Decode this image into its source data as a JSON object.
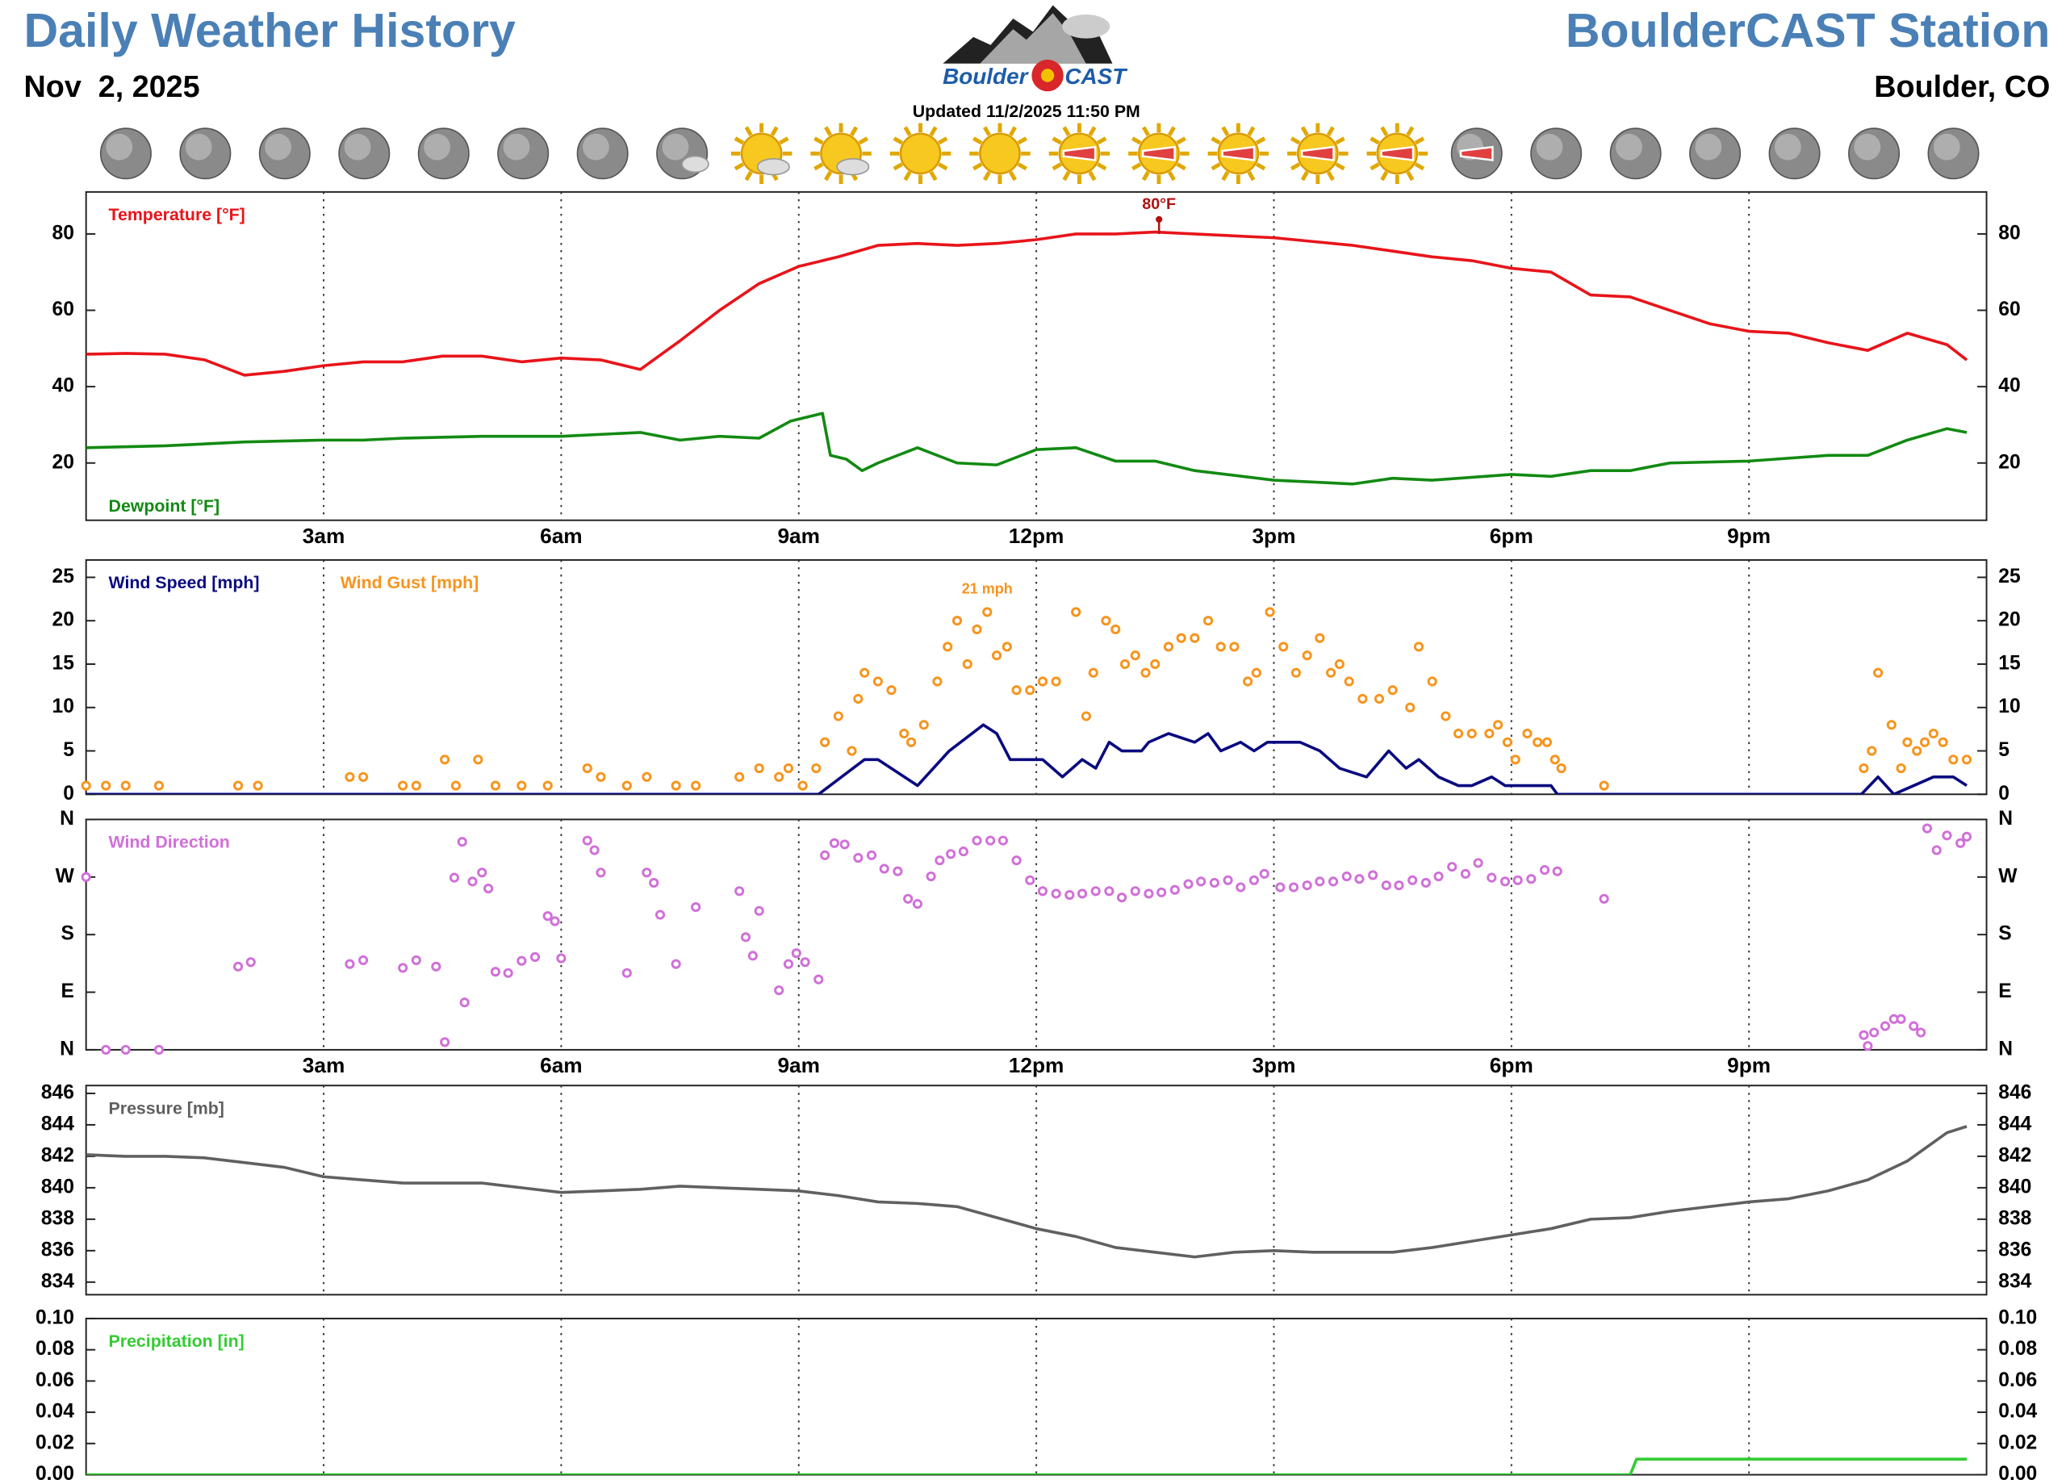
{
  "header": {
    "title": "Daily Weather History",
    "date": "Nov  2, 2025",
    "station": "BoulderCAST Station",
    "location": "Boulder, CO",
    "updated": "Updated 11/2/2025 11:50 PM",
    "logo_word_1": "Boulder",
    "logo_word_2": "CAST"
  },
  "chart_data": [
    {
      "type": "line",
      "xlim": [
        0,
        24
      ],
      "ylim": [
        5,
        91
      ],
      "yticks": [
        20,
        40,
        60,
        80
      ],
      "xticks": [
        {
          "value": 3,
          "label": "3am"
        },
        {
          "value": 6,
          "label": "6am"
        },
        {
          "value": 9,
          "label": "9am"
        },
        {
          "value": 12,
          "label": "12pm"
        },
        {
          "value": 15,
          "label": "3pm"
        },
        {
          "value": 18,
          "label": "6pm"
        },
        {
          "value": 21,
          "label": "9pm"
        }
      ],
      "series": [
        {
          "name": "Temperature [°F]",
          "color": "#e8141a",
          "mode": "line",
          "x": [
            0,
            0.5,
            1,
            1.5,
            2,
            2.5,
            3,
            3.5,
            4,
            4.5,
            5,
            5.5,
            6,
            6.5,
            7,
            7.5,
            8,
            8.5,
            9,
            9.5,
            10,
            10.5,
            11,
            11.5,
            12,
            12.5,
            13,
            13.5,
            14,
            14.5,
            15,
            15.5,
            16,
            16.5,
            17,
            17.5,
            18,
            18.5,
            19,
            19.5,
            20,
            20.5,
            21,
            21.5,
            22,
            22.5,
            23,
            23.5,
            23.75
          ],
          "values": [
            48.5,
            48.7,
            48.5,
            47,
            43,
            44,
            45.5,
            46.5,
            46.5,
            48,
            48,
            46.5,
            47.5,
            47,
            44.5,
            52,
            60,
            67,
            71.5,
            74,
            77,
            77.5,
            77,
            77.5,
            78.5,
            80,
            80,
            80.5,
            80,
            79.5,
            79,
            78,
            77,
            75.5,
            74,
            73,
            71,
            70,
            64,
            63.5,
            60,
            56.5,
            54.5,
            54,
            51.5,
            49.5,
            54,
            51,
            47
          ]
        },
        {
          "name": "Dewpoint [°F]",
          "color": "#128a12",
          "mode": "line",
          "legend_loc": "lower left",
          "x": [
            0,
            1,
            2,
            3,
            3.5,
            4,
            5,
            6,
            7,
            7.5,
            8,
            8.5,
            8.9,
            9.3,
            9.4,
            9.6,
            9.8,
            10,
            10.5,
            11,
            11.5,
            12,
            12.5,
            13,
            13.5,
            14,
            15,
            16,
            16.5,
            17,
            18,
            18.5,
            19,
            19.5,
            20,
            21,
            22,
            22.5,
            23,
            23.5,
            23.75
          ],
          "values": [
            24,
            24.5,
            25.5,
            26,
            26,
            26.5,
            27,
            27,
            28,
            26,
            27,
            26.5,
            31,
            33,
            22,
            21,
            18,
            20,
            24,
            20,
            19.5,
            23.5,
            24,
            20.5,
            20.5,
            18,
            15.5,
            14.5,
            16,
            15.5,
            17,
            16.5,
            18,
            18,
            20,
            20.5,
            22,
            22,
            26,
            29,
            28
          ]
        }
      ],
      "annotations": [
        {
          "text": "80°F",
          "x": 13.55,
          "y": 80,
          "color": "#b01010"
        }
      ]
    },
    {
      "type": "line",
      "xlim": [
        0,
        24
      ],
      "ylim": [
        0,
        27
      ],
      "yticks": [
        0,
        5,
        10,
        15,
        20,
        25
      ],
      "xticks": [
        3,
        6,
        9,
        12,
        15,
        18,
        21
      ],
      "series": [
        {
          "name": "Wind Speed [mph]",
          "color": "#0a0a80",
          "mode": "line",
          "x": [
            0,
            9.25,
            9.83,
            10,
            10.5,
            10.9,
            11.33,
            11.5,
            11.67,
            12.08,
            12.33,
            12.58,
            12.75,
            12.92,
            13.08,
            13.33,
            13.42,
            13.67,
            14,
            14.17,
            14.33,
            14.58,
            14.75,
            14.92,
            15.33,
            15.58,
            15.83,
            16.17,
            16.45,
            16.67,
            16.83,
            17.08,
            17.33,
            17.5,
            17.75,
            17.92,
            18.5,
            18.58,
            22.42,
            22.63,
            22.83,
            23.08,
            23.33,
            23.58,
            23.75
          ],
          "values": [
            0,
            0,
            4,
            4,
            1,
            5,
            8,
            7,
            4,
            4,
            2,
            4,
            3,
            6,
            5,
            5,
            6,
            7,
            6,
            7,
            5,
            6,
            5,
            6,
            6,
            5,
            3,
            2,
            5,
            3,
            4,
            2,
            1,
            1,
            2,
            1,
            1,
            0,
            0,
            2,
            0,
            1,
            2,
            2,
            1
          ]
        },
        {
          "name": "Wind Gust [mph]",
          "color": "#f7941d",
          "mode": "markers",
          "x": [
            0,
            0.25,
            0.5,
            0.92,
            1.92,
            2.17,
            3.33,
            3.5,
            4,
            4.17,
            4.53,
            4.67,
            4.95,
            5.17,
            5.5,
            5.83,
            6.33,
            6.5,
            6.83,
            7.08,
            7.45,
            7.7,
            8.25,
            8.5,
            8.75,
            8.87,
            9.05,
            9.22,
            9.33,
            9.5,
            9.67,
            9.75,
            9.83,
            10,
            10.17,
            10.33,
            10.42,
            10.58,
            10.75,
            10.88,
            11,
            11.13,
            11.25,
            11.38,
            11.5,
            11.63,
            11.75,
            11.92,
            12.08,
            12.25,
            12.5,
            12.63,
            12.72,
            12.88,
            13,
            13.12,
            13.25,
            13.38,
            13.5,
            13.67,
            13.83,
            14,
            14.17,
            14.33,
            14.5,
            14.67,
            14.78,
            14.95,
            15.12,
            15.28,
            15.42,
            15.58,
            15.72,
            15.83,
            15.95,
            16.12,
            16.33,
            16.5,
            16.72,
            16.83,
            17,
            17.17,
            17.33,
            17.5,
            17.72,
            17.83,
            17.95,
            18.05,
            18.2,
            18.33,
            18.45,
            18.55,
            18.63,
            19.17,
            22.45,
            22.55,
            22.63,
            22.8,
            22.92,
            23,
            23.12,
            23.22,
            23.33,
            23.45,
            23.58,
            23.75
          ],
          "values": [
            1,
            1,
            1,
            1,
            1,
            1,
            2,
            2,
            1,
            1,
            4,
            1,
            4,
            1,
            1,
            1,
            3,
            2,
            1,
            2,
            1,
            1,
            2,
            3,
            2,
            3,
            1,
            3,
            6,
            9,
            5,
            11,
            14,
            13,
            12,
            7,
            6,
            8,
            13,
            17,
            20,
            15,
            19,
            21,
            16,
            17,
            12,
            12,
            13,
            13,
            21,
            9,
            14,
            20,
            19,
            15,
            16,
            14,
            15,
            17,
            18,
            18,
            20,
            17,
            17,
            13,
            14,
            21,
            17,
            14,
            16,
            18,
            14,
            15,
            13,
            11,
            11,
            12,
            10,
            17,
            13,
            9,
            7,
            7,
            7,
            8,
            6,
            4,
            7,
            6,
            6,
            4,
            3,
            1,
            3,
            5,
            14,
            8,
            3,
            6,
            5,
            6,
            7,
            6,
            4,
            4
          ]
        }
      ],
      "annotations": [
        {
          "text": "21 mph",
          "x": 11.38,
          "y": 21,
          "color": "#f7941d"
        }
      ]
    },
    {
      "type": "scatter",
      "xlim": [
        0,
        24
      ],
      "ylim": [
        0,
        360
      ],
      "yticks": [
        {
          "value": 0,
          "label": "N"
        },
        {
          "value": 90,
          "label": "E"
        },
        {
          "value": 180,
          "label": "S"
        },
        {
          "value": 270,
          "label": "W"
        },
        {
          "value": 360,
          "label": "N"
        }
      ],
      "xticks": [
        {
          "value": 3,
          "label": "3am"
        },
        {
          "value": 6,
          "label": "6am"
        },
        {
          "value": 9,
          "label": "9am"
        },
        {
          "value": 12,
          "label": "12pm"
        },
        {
          "value": 15,
          "label": "3pm"
        },
        {
          "value": 18,
          "label": "6pm"
        },
        {
          "value": 21,
          "label": "9pm"
        }
      ],
      "series": [
        {
          "name": "Wind Direction",
          "color": "#d070d8",
          "mode": "markers",
          "x": [
            0,
            0.25,
            0.5,
            0.92,
            1.92,
            2.08,
            3.33,
            3.5,
            4,
            4.17,
            4.42,
            4.53,
            4.65,
            4.75,
            4.78,
            4.88,
            5,
            5.08,
            5.17,
            5.33,
            5.5,
            5.67,
            5.83,
            5.92,
            6,
            6.33,
            6.42,
            6.5,
            6.83,
            7.08,
            7.17,
            7.25,
            7.45,
            7.7,
            8.25,
            8.33,
            8.42,
            8.5,
            8.75,
            8.87,
            8.97,
            9.08,
            9.25,
            9.33,
            9.45,
            9.58,
            9.75,
            9.92,
            10.08,
            10.25,
            10.38,
            10.5,
            10.67,
            10.78,
            10.92,
            11.08,
            11.25,
            11.42,
            11.58,
            11.75,
            11.92,
            12.08,
            12.25,
            12.42,
            12.58,
            12.75,
            12.92,
            13.08,
            13.25,
            13.42,
            13.58,
            13.75,
            13.92,
            14.08,
            14.25,
            14.42,
            14.58,
            14.75,
            14.88,
            15.08,
            15.25,
            15.42,
            15.58,
            15.75,
            15.92,
            16.08,
            16.25,
            16.42,
            16.58,
            16.75,
            16.92,
            17.08,
            17.25,
            17.42,
            17.58,
            17.75,
            17.92,
            18.08,
            18.25,
            18.42,
            18.58,
            19.17,
            22.45,
            22.5,
            22.58,
            22.72,
            22.83,
            22.92,
            23.08,
            23.17,
            23.25,
            23.37,
            23.5,
            23.67,
            23.75
          ],
          "values": [
            270,
            0,
            0,
            0,
            130,
            137,
            134,
            140,
            128,
            140,
            130,
            12,
            269,
            325,
            74,
            263,
            277,
            252,
            122,
            120,
            139,
            145,
            209,
            201,
            143,
            327,
            312,
            277,
            120,
            277,
            261,
            211,
            134,
            223,
            248,
            176,
            147,
            217,
            93,
            134,
            151,
            137,
            110,
            304,
            323,
            321,
            300,
            304,
            283,
            279,
            236,
            228,
            271,
            296,
            306,
            310,
            327,
            327,
            327,
            296,
            265,
            248,
            244,
            242,
            244,
            248,
            248,
            238,
            248,
            244,
            246,
            250,
            259,
            263,
            261,
            265,
            254,
            265,
            275,
            254,
            254,
            257,
            263,
            263,
            271,
            267,
            273,
            257,
            257,
            265,
            261,
            271,
            286,
            275,
            292,
            269,
            263,
            265,
            267,
            281,
            279,
            236,
            23,
            6,
            27,
            37,
            48,
            48,
            37,
            27,
            346,
            312,
            335,
            323,
            333
          ]
        }
      ]
    },
    {
      "type": "line",
      "xlim": [
        0,
        24
      ],
      "ylim": [
        833.2,
        846.5
      ],
      "yticks": [
        834,
        836,
        838,
        840,
        842,
        844,
        846
      ],
      "xticks": [
        3,
        6,
        9,
        12,
        15,
        18,
        21
      ],
      "series": [
        {
          "name": "Pressure [mb]",
          "color": "#606060",
          "mode": "line",
          "x": [
            0,
            0.5,
            1,
            1.5,
            2,
            2.5,
            3,
            3.5,
            4,
            4.5,
            5,
            5.5,
            6,
            6.5,
            7,
            7.5,
            8,
            8.5,
            9,
            9.5,
            10,
            10.5,
            11,
            11.5,
            12,
            12.5,
            13,
            13.5,
            14,
            14.5,
            15,
            15.5,
            16,
            16.5,
            17,
            17.5,
            18,
            18.5,
            19,
            19.5,
            20,
            20.5,
            21,
            21.5,
            22,
            22.5,
            23,
            23.5,
            23.75
          ],
          "values": [
            842.1,
            842,
            842,
            841.9,
            841.6,
            841.3,
            840.7,
            840.5,
            840.3,
            840.3,
            840.3,
            840,
            839.7,
            839.8,
            839.9,
            840.1,
            840,
            839.9,
            839.8,
            839.5,
            839.1,
            839,
            838.8,
            838.1,
            837.4,
            836.9,
            836.2,
            835.9,
            835.6,
            835.9,
            836,
            835.9,
            835.9,
            835.9,
            836.2,
            836.6,
            837,
            837.4,
            838,
            838.1,
            838.5,
            838.8,
            839.1,
            839.3,
            839.8,
            840.5,
            841.7,
            843.5,
            843.9
          ]
        }
      ]
    },
    {
      "type": "line",
      "xlim": [
        0,
        24
      ],
      "ylim": [
        0,
        0.1
      ],
      "yticks": [
        {
          "value": 0,
          "label": "0.00"
        },
        {
          "value": 0.02,
          "label": "0.02"
        },
        {
          "value": 0.04,
          "label": "0.04"
        },
        {
          "value": 0.06,
          "label": "0.06"
        },
        {
          "value": 0.08,
          "label": "0.08"
        },
        {
          "value": 0.1,
          "label": "0.10"
        }
      ],
      "xticks": [
        3,
        6,
        9,
        12,
        15,
        18,
        21
      ],
      "series": [
        {
          "name": "Precipitation [in]",
          "color": "#33cc33",
          "mode": "line",
          "x": [
            0,
            19.5,
            19.58,
            23.75
          ],
          "values": [
            0,
            0,
            0.01,
            0.01
          ]
        }
      ]
    }
  ]
}
